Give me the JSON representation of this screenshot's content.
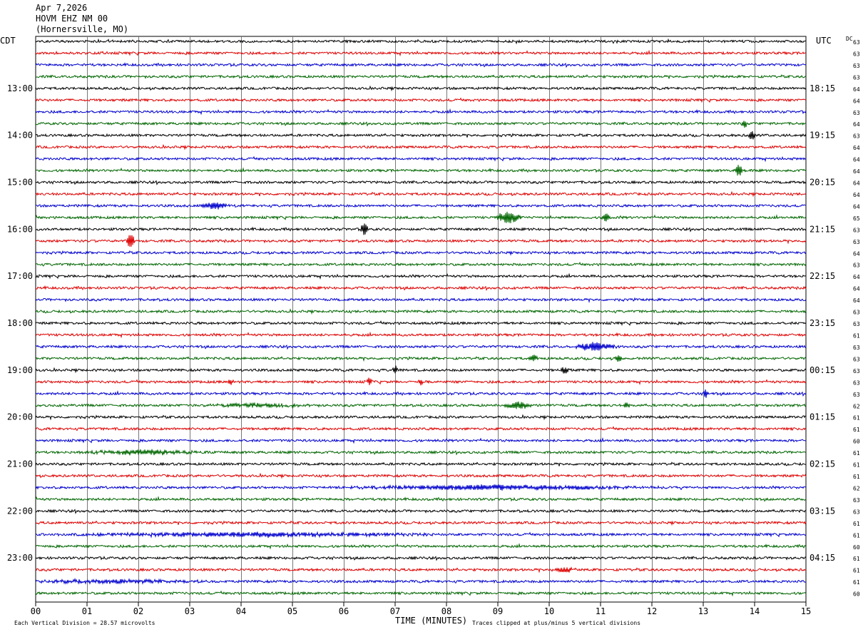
{
  "chart_data": {
    "type": "line",
    "title": "Apr 7,2026",
    "subtitle_lines": [
      "HOVM EHZ NM 00",
      "(Hornersville, MO)"
    ],
    "left_timezone": "CDT",
    "right_timezone": "UTC",
    "dc_header": "DC",
    "xlabel": "TIME (MINUTES)",
    "x_ticks": [
      "00",
      "01",
      "02",
      "03",
      "04",
      "05",
      "06",
      "07",
      "08",
      "09",
      "10",
      "11",
      "12",
      "13",
      "14",
      "15"
    ],
    "xlim": [
      0,
      15
    ],
    "vertical_grid": true,
    "trace_colors": [
      "#000000",
      "#dd0000",
      "#0000cc",
      "#006600"
    ],
    "left_hour_labels": [
      "13:00",
      "14:00",
      "15:00",
      "16:00",
      "17:00",
      "18:00",
      "19:00",
      "20:00",
      "21:00",
      "22:00",
      "23:00"
    ],
    "right_hour_labels": [
      "18:15",
      "19:15",
      "20:15",
      "21:15",
      "22:15",
      "23:15",
      "00:15",
      "01:15",
      "02:15",
      "03:15",
      "04:15"
    ],
    "dc_values": [
      63,
      63,
      63,
      63,
      64,
      64,
      63,
      64,
      63,
      64,
      64,
      64,
      64,
      64,
      64,
      65,
      63,
      63,
      64,
      63,
      64,
      64,
      64,
      63,
      63,
      61,
      63,
      63,
      63,
      63,
      63,
      62,
      61,
      61,
      60,
      61,
      61,
      61,
      62,
      63,
      63,
      61,
      61,
      60,
      61,
      61,
      61,
      60
    ],
    "events": [
      {
        "row": 16,
        "minute": 6.4,
        "amp": 1.6,
        "dur": 0.08
      },
      {
        "row": 17,
        "minute": 1.85,
        "amp": 1.8,
        "dur": 0.1
      },
      {
        "row": 15,
        "minute": 9.2,
        "amp": 1.2,
        "dur": 0.3
      },
      {
        "row": 15,
        "minute": 11.1,
        "amp": 0.8,
        "dur": 0.1
      },
      {
        "row": 14,
        "minute": 3.5,
        "amp": 0.7,
        "dur": 0.3
      },
      {
        "row": 11,
        "minute": 13.7,
        "amp": 1.3,
        "dur": 0.08
      },
      {
        "row": 8,
        "minute": 13.95,
        "amp": 1.0,
        "dur": 0.08
      },
      {
        "row": 7,
        "minute": 13.8,
        "amp": 0.9,
        "dur": 0.06
      },
      {
        "row": 26,
        "minute": 10.9,
        "amp": 0.8,
        "dur": 0.5
      },
      {
        "row": 27,
        "minute": 9.7,
        "amp": 0.7,
        "dur": 0.1
      },
      {
        "row": 27,
        "minute": 11.35,
        "amp": 0.7,
        "dur": 0.1
      },
      {
        "row": 28,
        "minute": 7.0,
        "amp": 0.9,
        "dur": 0.06
      },
      {
        "row": 28,
        "minute": 10.3,
        "amp": 0.6,
        "dur": 0.1
      },
      {
        "row": 29,
        "minute": 3.8,
        "amp": 0.6,
        "dur": 0.06
      },
      {
        "row": 29,
        "minute": 6.5,
        "amp": 0.8,
        "dur": 0.06
      },
      {
        "row": 29,
        "minute": 7.5,
        "amp": 0.8,
        "dur": 0.06
      },
      {
        "row": 30,
        "minute": 13.05,
        "amp": 1.0,
        "dur": 0.06
      },
      {
        "row": 31,
        "minute": 4.3,
        "amp": 0.6,
        "dur": 1.2
      },
      {
        "row": 31,
        "minute": 9.4,
        "amp": 0.7,
        "dur": 0.3
      },
      {
        "row": 31,
        "minute": 11.5,
        "amp": 0.6,
        "dur": 0.1
      },
      {
        "row": 35,
        "minute": 2.1,
        "amp": 0.9,
        "dur": 1.3
      },
      {
        "row": 38,
        "minute": 9.0,
        "amp": 0.8,
        "dur": 3.6
      },
      {
        "row": 42,
        "minute": 4.3,
        "amp": 0.7,
        "dur": 4.2
      },
      {
        "row": 45,
        "minute": 10.3,
        "amp": 0.5,
        "dur": 0.3
      },
      {
        "row": 46,
        "minute": 1.5,
        "amp": 0.6,
        "dur": 2.2
      }
    ],
    "footer_left": "Each Vertical Division =   28.57 microvolts",
    "footer_right": "Traces clipped at plus/minus 5 vertical divisions"
  }
}
